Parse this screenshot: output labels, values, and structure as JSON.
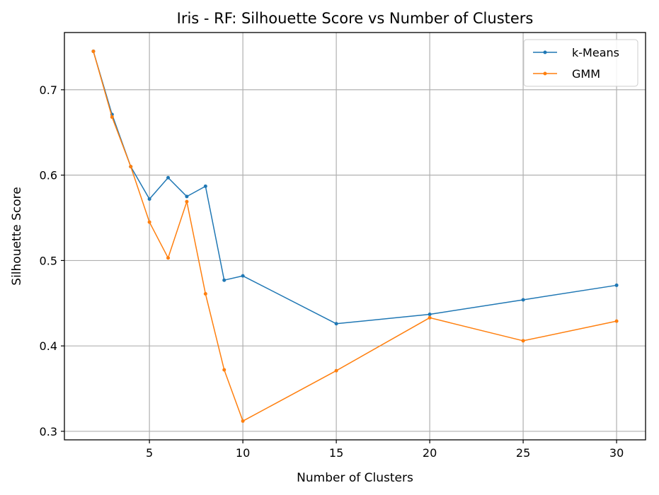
{
  "chart_data": {
    "type": "line",
    "title": "Iris - RF: Silhouette Score vs Number of Clusters",
    "xlabel": "Number of Clusters",
    "ylabel": "Silhouette Score",
    "xlim": [
      0.45,
      31.55
    ],
    "ylim": [
      0.29,
      0.767
    ],
    "xticks": [
      5,
      10,
      15,
      20,
      25,
      30
    ],
    "xtick_labels": [
      "5",
      "10",
      "15",
      "20",
      "25",
      "30"
    ],
    "yticks": [
      0.3,
      0.4,
      0.5,
      0.6,
      0.7
    ],
    "ytick_labels": [
      "0.3",
      "0.4",
      "0.5",
      "0.6",
      "0.7"
    ],
    "grid": true,
    "legend_position": "top-right",
    "x": [
      2,
      3,
      4,
      5,
      6,
      7,
      8,
      9,
      10,
      15,
      20,
      25,
      30
    ],
    "series": [
      {
        "name": "k-Means",
        "color": "#1f77b4",
        "values": [
          0.745,
          0.671,
          0.61,
          0.572,
          0.597,
          0.575,
          0.587,
          0.477,
          0.482,
          0.426,
          0.437,
          0.454,
          0.471
        ]
      },
      {
        "name": "GMM",
        "color": "#ff7f0e",
        "values": [
          0.745,
          0.668,
          0.61,
          0.545,
          0.503,
          0.569,
          0.461,
          0.372,
          0.312,
          0.371,
          0.433,
          0.406,
          0.429
        ]
      }
    ]
  }
}
